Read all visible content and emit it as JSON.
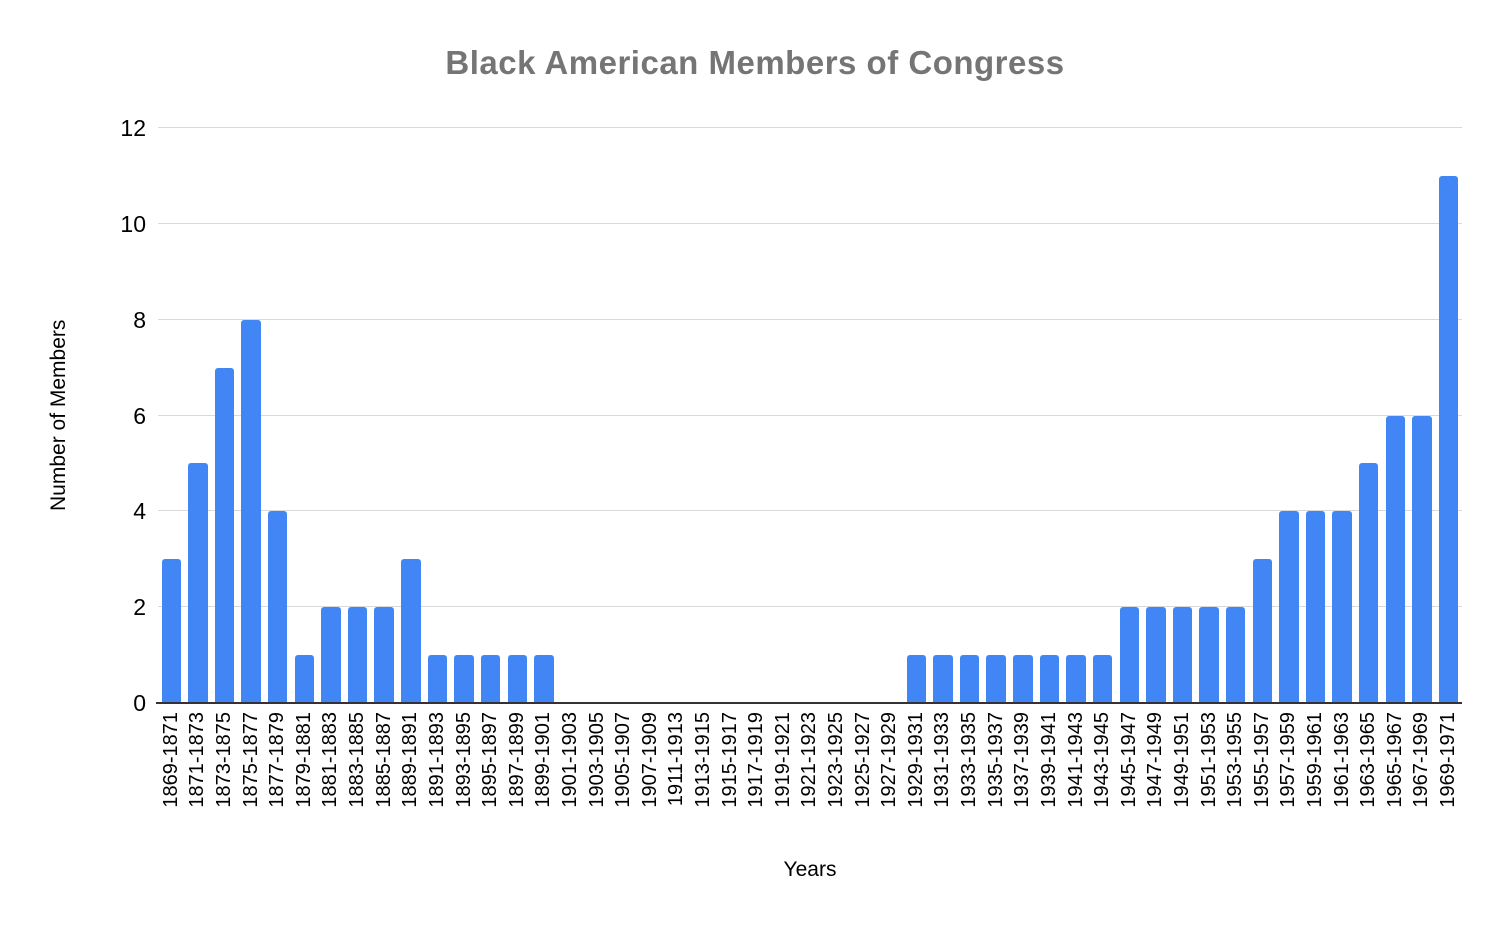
{
  "chart_data": {
    "type": "bar",
    "title": "Black American Members of Congress",
    "xlabel": "Years",
    "ylabel": "Number of Members",
    "categories": [
      "1869-1871",
      "1871-1873",
      "1873-1875",
      "1875-1877",
      "1877-1879",
      "1879-1881",
      "1881-1883",
      "1883-1885",
      "1885-1887",
      "1889-1891",
      "1891-1893",
      "1893-1895",
      "1895-1897",
      "1897-1899",
      "1899-1901",
      "1901-1903",
      "1903-1905",
      "1905-1907",
      "1907-1909",
      "1911-1913",
      "1913-1915",
      "1915-1917",
      "1917-1919",
      "1919-1921",
      "1921-1923",
      "1923-1925",
      "1925-1927",
      "1927-1929",
      "1929-1931",
      "1931-1933",
      "1933-1935",
      "1935-1937",
      "1937-1939",
      "1939-1941",
      "1941-1943",
      "1943-1945",
      "1945-1947",
      "1947-1949",
      "1949-1951",
      "1951-1953",
      "1953-1955",
      "1955-1957",
      "1957-1959",
      "1959-1961",
      "1961-1963",
      "1963-1965",
      "1965-1967",
      "1967-1969",
      "1969-1971"
    ],
    "values": [
      3,
      5,
      7,
      8,
      4,
      1,
      2,
      2,
      2,
      3,
      1,
      1,
      1,
      1,
      1,
      0,
      0,
      0,
      0,
      0,
      0,
      0,
      0,
      0,
      0,
      0,
      0,
      0,
      1,
      1,
      1,
      1,
      1,
      1,
      1,
      1,
      2,
      2,
      2,
      2,
      2,
      3,
      4,
      4,
      4,
      5,
      6,
      6,
      11
    ],
    "ylim": [
      0,
      12
    ],
    "yticks": [
      0,
      2,
      4,
      6,
      8,
      10,
      12
    ],
    "grid": true,
    "legend": false,
    "colors": {
      "bar": "#4285f4",
      "title_text": "#757575",
      "axis_text": "#000000",
      "gridline": "#d9d9d9",
      "axis_line": "#333333"
    }
  }
}
